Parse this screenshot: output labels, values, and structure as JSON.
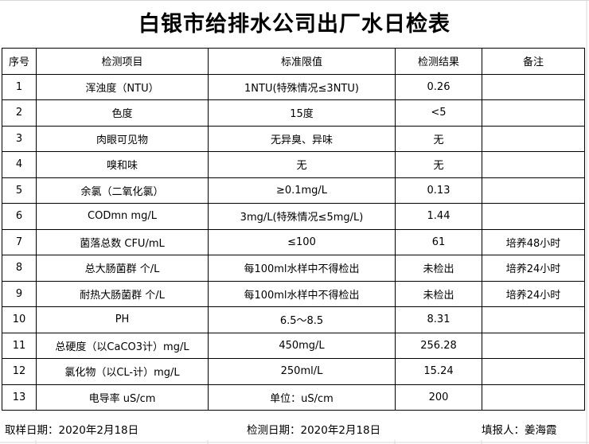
{
  "title": "白银市给排水公司出厂水日检表",
  "headers": [
    "序号",
    "检测项目",
    "标准限值",
    "检测结果",
    "备注"
  ],
  "rows": [
    [
      "1",
      "浑浊度（NTU）",
      "1NTU(特殊情况≤3NTU)",
      "0.26",
      ""
    ],
    [
      "2",
      "色度",
      "15度",
      "<5",
      ""
    ],
    [
      "3",
      "肉眼可见物",
      "无异臭、异味",
      "无",
      ""
    ],
    [
      "4",
      "嗅和味",
      "无",
      "无",
      ""
    ],
    [
      "5",
      "余氯（二氧化氯）",
      "≥0.1mg/L",
      "0.13",
      ""
    ],
    [
      "6",
      "CODmn mg/L",
      "3mg/L(特殊情况≤5mg/L)",
      "1.44",
      ""
    ],
    [
      "7",
      "菌落总数  CFU/mL",
      "≤100",
      "61",
      "培养48小时"
    ],
    [
      "8",
      "总大肠菌群 个/L",
      "每100ml水样中不得检出",
      "未检出",
      "培养24小时"
    ],
    [
      "9",
      "耐热大肠菌群 个/L",
      "每100ml水样中不得检出",
      "未检出",
      "培养24小时"
    ],
    [
      "10",
      "PH",
      "6.5～8.5",
      "8.31",
      ""
    ],
    [
      "11",
      "总硬度（以CaCO3计）mg/L",
      "450mg/L",
      "256.28",
      ""
    ],
    [
      "12",
      "氯化物（以CL-计）mg/L",
      "250ml/L",
      "15.24",
      ""
    ],
    [
      "13",
      "电导率 uS/cm",
      "单位：uS/cm",
      "200",
      ""
    ]
  ],
  "footer": {
    "sampling_date": "取样日期：2020年2月18日",
    "test_date": "检测日期：2020年2月18日",
    "reporter": "填报人：姜海霞"
  }
}
